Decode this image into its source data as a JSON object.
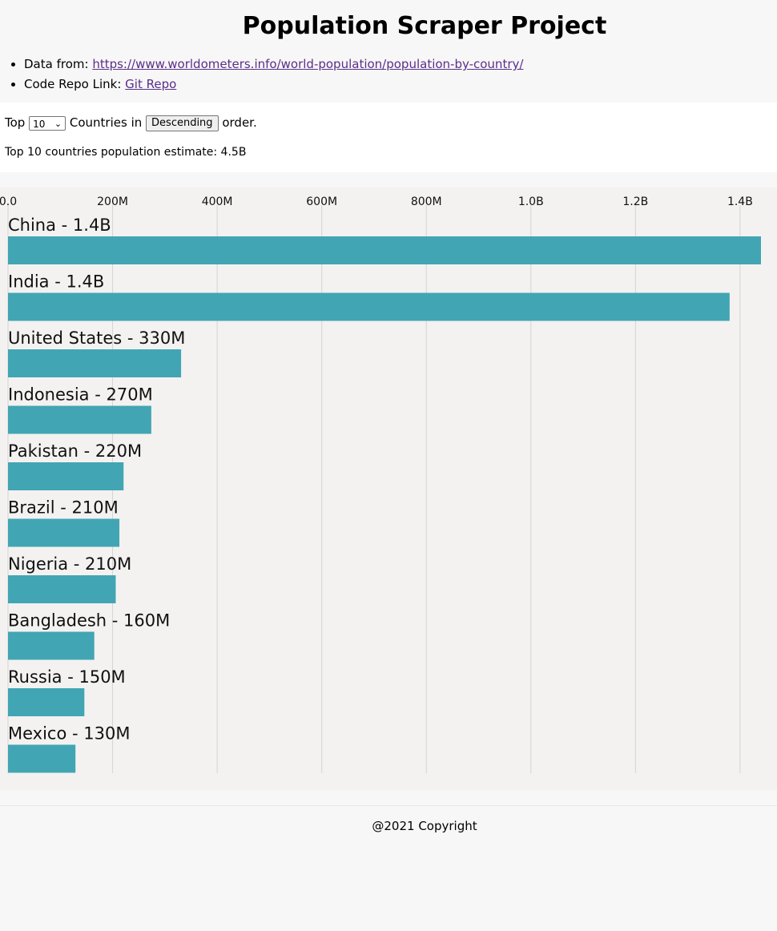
{
  "header": {
    "title": "Population Scraper Project",
    "data_from_label": "Data from: ",
    "data_from_link": "https://www.worldometers.info/world-population/population-by-country/",
    "repo_label": "Code Repo Link: ",
    "repo_link": "Git Repo"
  },
  "controls": {
    "prefix": "Top",
    "count": "10",
    "middle": "Countries in",
    "order_button": "Descending",
    "suffix": "order."
  },
  "summary": "Top 10 countries population estimate: 4.5B",
  "footer": "@2021 Copyright",
  "colors": {
    "bar": "#42a5b3",
    "grid": "#d4d4d4"
  },
  "chart_data": {
    "type": "bar",
    "orientation": "horizontal",
    "xlim": [
      0,
      1440000000
    ],
    "ticks": [
      {
        "value": 0,
        "label": "0.0"
      },
      {
        "value": 200000000,
        "label": "200M"
      },
      {
        "value": 400000000,
        "label": "400M"
      },
      {
        "value": 600000000,
        "label": "600M"
      },
      {
        "value": 800000000,
        "label": "800M"
      },
      {
        "value": 1000000000,
        "label": "1.0B"
      },
      {
        "value": 1200000000,
        "label": "1.2B"
      },
      {
        "value": 1400000000,
        "label": "1.4B"
      }
    ],
    "grid": true,
    "bars": [
      {
        "label": "China - 1.4B",
        "value": 1440000000
      },
      {
        "label": "India - 1.4B",
        "value": 1380000000
      },
      {
        "label": "United States - 330M",
        "value": 331000000
      },
      {
        "label": "Indonesia - 270M",
        "value": 274000000
      },
      {
        "label": "Pakistan - 220M",
        "value": 221000000
      },
      {
        "label": "Brazil - 210M",
        "value": 213000000
      },
      {
        "label": "Nigeria - 210M",
        "value": 206000000
      },
      {
        "label": "Bangladesh - 160M",
        "value": 165000000
      },
      {
        "label": "Russia - 150M",
        "value": 146000000
      },
      {
        "label": "Mexico - 130M",
        "value": 129000000
      }
    ]
  }
}
